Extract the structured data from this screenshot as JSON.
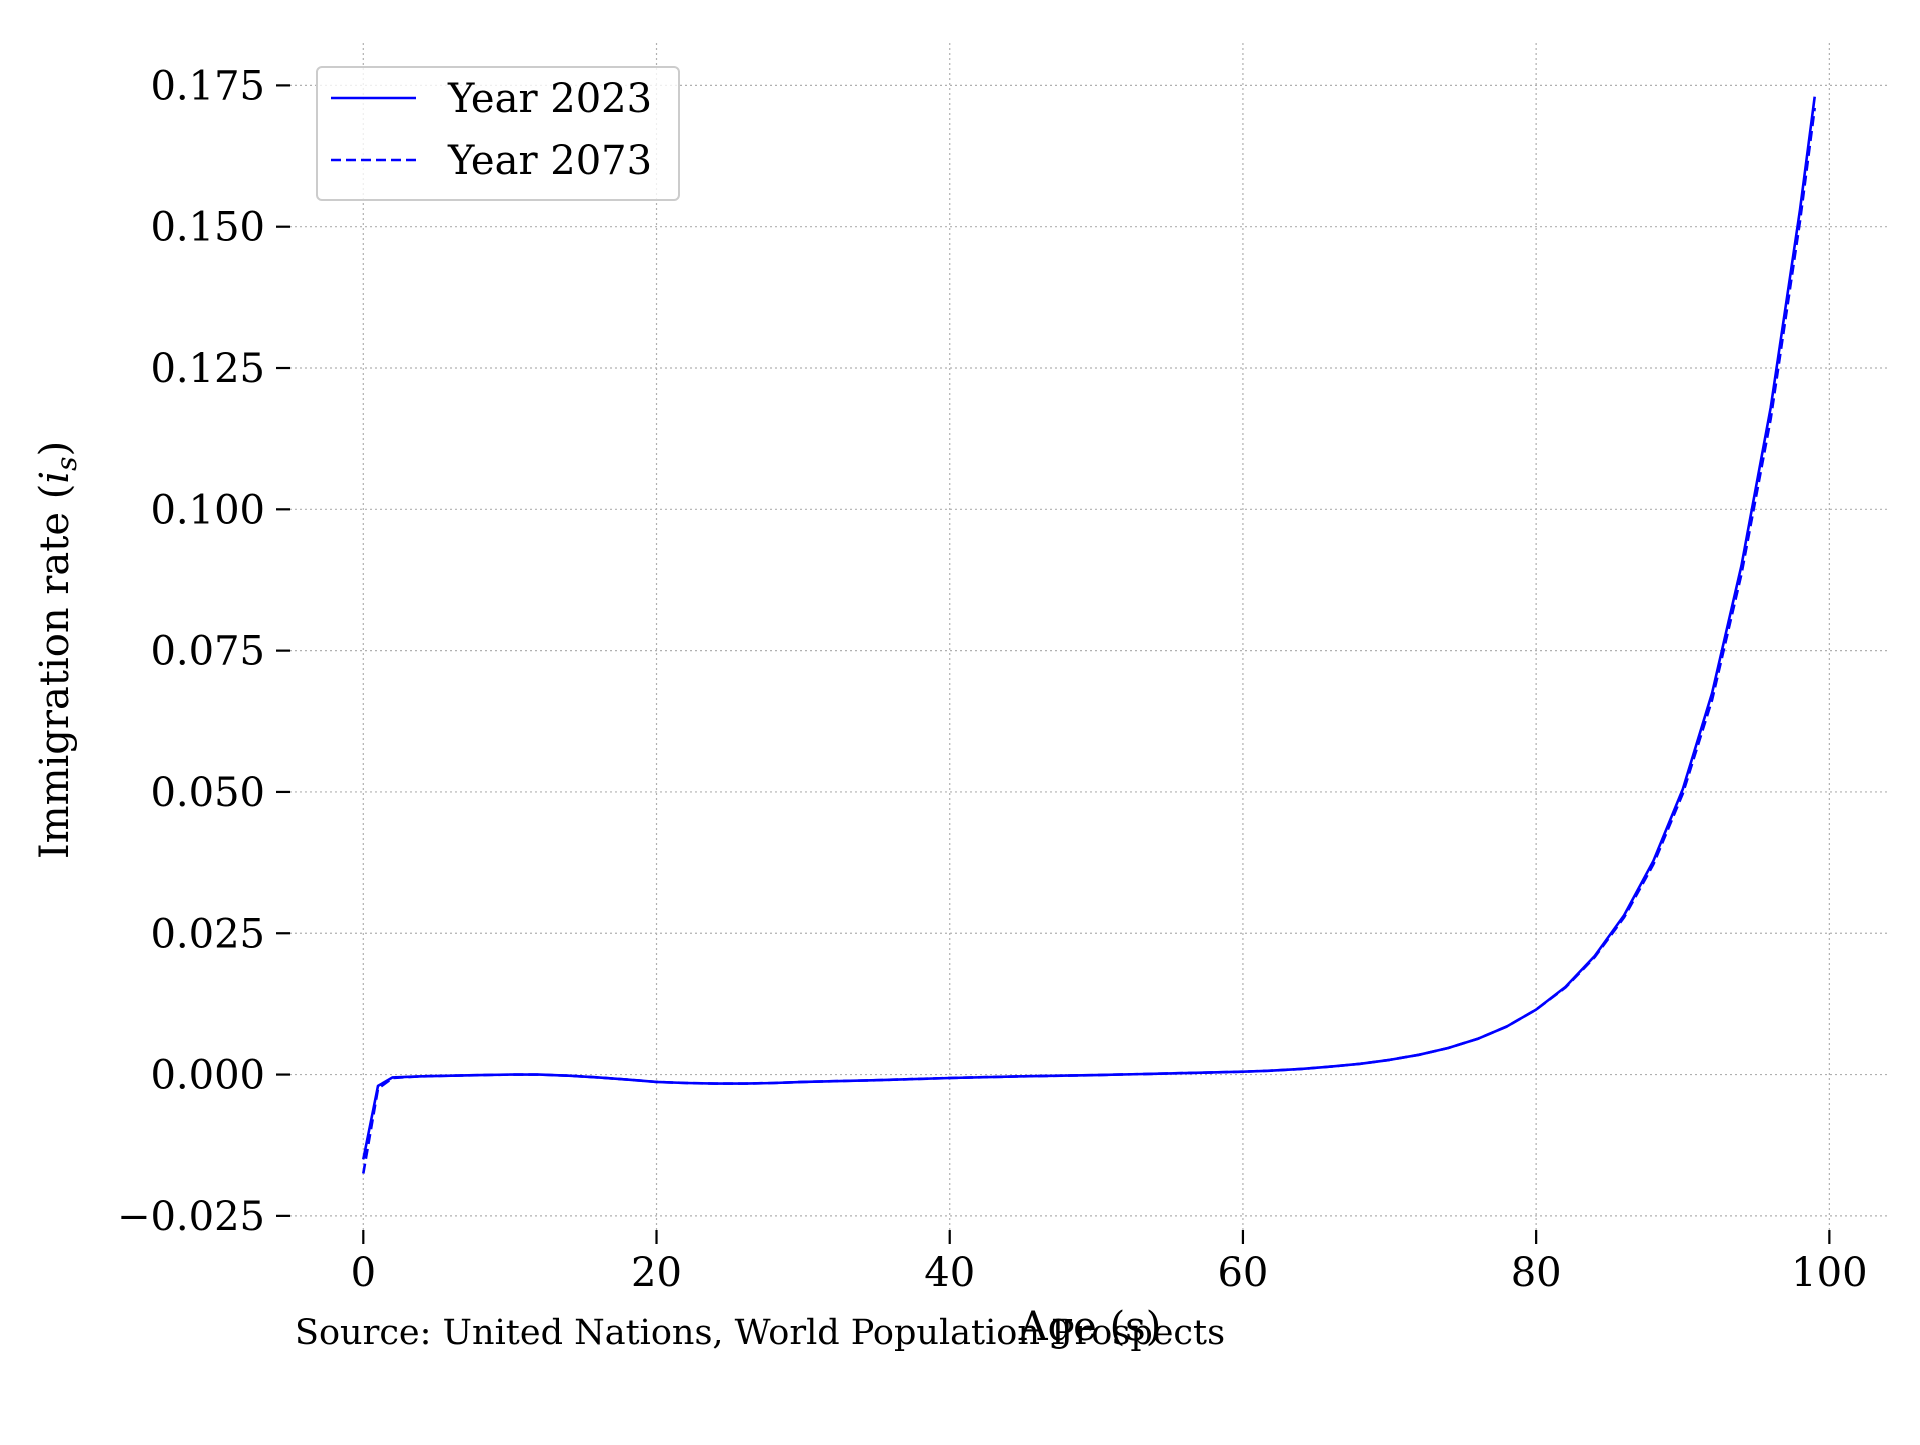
{
  "chart_data": {
    "type": "line",
    "title": "",
    "xlabel": "Age (s)",
    "ylabel_text": "Immigration rate (",
    "ylabel_symbol": "i",
    "ylabel_subscript": "s",
    "ylabel_close": ")",
    "xlim": [
      -5,
      104
    ],
    "ylim": [
      -0.0275,
      0.1825
    ],
    "xticks": [
      0,
      20,
      40,
      60,
      80,
      100
    ],
    "xtick_labels": [
      "0",
      "20",
      "40",
      "60",
      "80",
      "100"
    ],
    "yticks": [
      -0.025,
      0.0,
      0.025,
      0.05,
      0.075,
      0.1,
      0.125,
      0.15,
      0.175
    ],
    "ytick_labels": [
      "−0.025",
      "0.000",
      "0.025",
      "0.050",
      "0.075",
      "0.100",
      "0.125",
      "0.150",
      "0.175"
    ],
    "grid": true,
    "legend_position": "top-left",
    "line_color": "#0000ff",
    "series": [
      {
        "name": "Year 2023",
        "style": "solid",
        "x": [
          0,
          1,
          2,
          4,
          6,
          8,
          10,
          12,
          14,
          16,
          18,
          20,
          22,
          24,
          26,
          28,
          30,
          35,
          40,
          45,
          50,
          55,
          60,
          62,
          64,
          66,
          68,
          70,
          72,
          74,
          76,
          78,
          80,
          82,
          84,
          86,
          88,
          90,
          92,
          94,
          96,
          98,
          99
        ],
        "y": [
          -0.015,
          -0.002,
          -0.0005,
          -0.0003,
          -0.0002,
          -0.0001,
          0.0,
          0.0,
          -0.0002,
          -0.0005,
          -0.0009,
          -0.0013,
          -0.0015,
          -0.0016,
          -0.0016,
          -0.0015,
          -0.0013,
          -0.001,
          -0.0006,
          -0.0003,
          -0.0001,
          0.0002,
          0.0005,
          0.0007,
          0.001,
          0.0014,
          0.0019,
          0.0026,
          0.0035,
          0.0047,
          0.0063,
          0.0085,
          0.0115,
          0.0155,
          0.021,
          0.0282,
          0.0378,
          0.0505,
          0.0675,
          0.09,
          0.118,
          0.153,
          0.173
        ]
      },
      {
        "name": "Year 2073",
        "style": "dashed",
        "x": [
          0,
          1,
          2,
          4,
          6,
          8,
          10,
          12,
          14,
          16,
          18,
          20,
          22,
          24,
          26,
          28,
          30,
          35,
          40,
          45,
          50,
          55,
          60,
          62,
          64,
          66,
          68,
          70,
          72,
          74,
          76,
          78,
          80,
          82,
          84,
          86,
          88,
          90,
          92,
          94,
          96,
          98,
          99
        ],
        "y": [
          -0.0175,
          -0.0025,
          -0.0006,
          -0.0003,
          -0.0002,
          -0.0001,
          0.0,
          0.0,
          -0.0002,
          -0.0005,
          -0.0009,
          -0.0013,
          -0.0015,
          -0.0016,
          -0.0016,
          -0.0015,
          -0.0013,
          -0.001,
          -0.0006,
          -0.0003,
          -0.0001,
          0.0002,
          0.0005,
          0.0007,
          0.001,
          0.0014,
          0.0019,
          0.0026,
          0.0035,
          0.0047,
          0.0063,
          0.0085,
          0.0115,
          0.0154,
          0.0208,
          0.0278,
          0.0372,
          0.0497,
          0.0663,
          0.0885,
          0.116,
          0.151,
          0.171
        ]
      }
    ],
    "source_note": "Source: United Nations, World Population Prospects"
  }
}
